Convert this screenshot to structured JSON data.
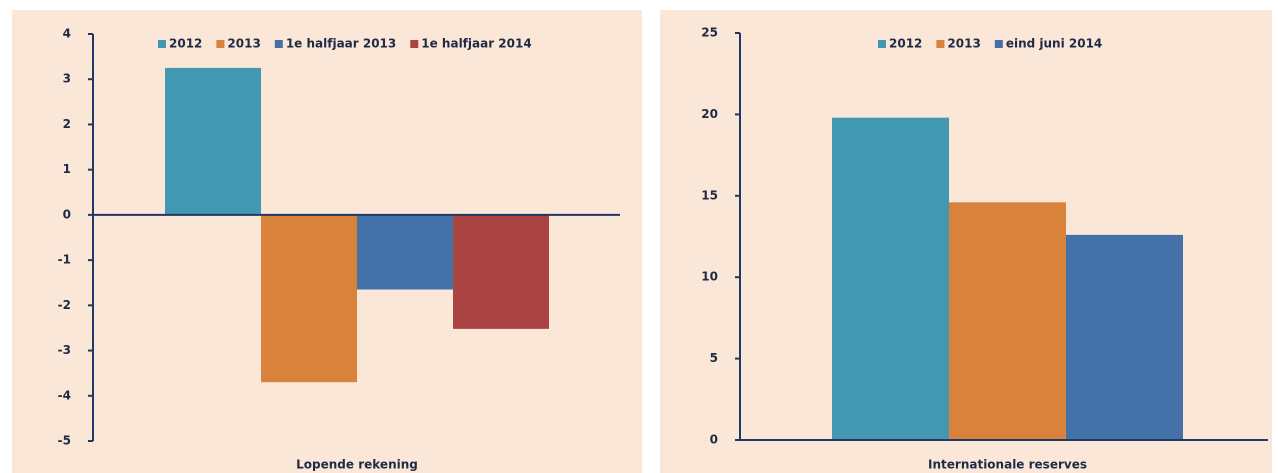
{
  "chart_data": [
    {
      "type": "bar",
      "categories": [
        "Lopende rekening"
      ],
      "series": [
        {
          "name": "2012",
          "color": "#4298b0",
          "values": [
            3.25
          ]
        },
        {
          "name": "2013",
          "color": "#d9823b",
          "values": [
            -3.7
          ]
        },
        {
          "name": "1e halfjaar 2013",
          "color": "#4472a8",
          "values": [
            -1.65
          ]
        },
        {
          "name": "1e halfjaar 2014",
          "color": "#a94442",
          "values": [
            -2.52
          ]
        }
      ],
      "ylim": [
        -5,
        4
      ],
      "yticks": [
        -5,
        -4,
        -3,
        -2,
        -1,
        0,
        1,
        2,
        3,
        4
      ],
      "legend": "top"
    },
    {
      "type": "bar",
      "categories": [
        "Internationale reserves"
      ],
      "series": [
        {
          "name": "2012",
          "color": "#4298b0",
          "values": [
            19.8
          ]
        },
        {
          "name": "2013",
          "color": "#d9823b",
          "values": [
            14.6
          ]
        },
        {
          "name": "eind juni 2014",
          "color": "#4472a8",
          "values": [
            12.6
          ]
        }
      ],
      "ylim": [
        0,
        25
      ],
      "yticks": [
        0,
        5,
        10,
        15,
        20,
        25
      ],
      "legend": "top"
    }
  ]
}
